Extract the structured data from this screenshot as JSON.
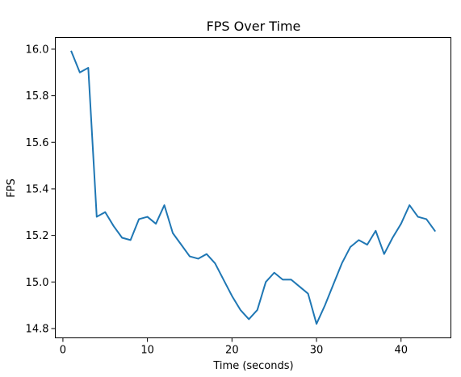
{
  "chart_data": {
    "type": "line",
    "title": "FPS Over Time",
    "xlabel": "Time (seconds)",
    "ylabel": "FPS",
    "xlim": [
      -0.9,
      45.9
    ],
    "ylim": [
      14.76,
      16.05
    ],
    "xticks": [
      0,
      10,
      20,
      30,
      40
    ],
    "xtick_labels": [
      "0",
      "10",
      "20",
      "30",
      "40"
    ],
    "yticks": [
      14.8,
      15.0,
      15.2,
      15.4,
      15.6,
      15.8,
      16.0
    ],
    "ytick_labels": [
      "14.8",
      "15.0",
      "15.2",
      "15.4",
      "15.6",
      "15.8",
      "16.0"
    ],
    "grid": false,
    "series": [
      {
        "color": "#1f77b4",
        "x": [
          1,
          2,
          3,
          4,
          5,
          6,
          7,
          8,
          9,
          10,
          11,
          12,
          13,
          14,
          15,
          16,
          17,
          18,
          19,
          20,
          21,
          22,
          23,
          24,
          25,
          26,
          27,
          28,
          29,
          30,
          31,
          32,
          33,
          34,
          35,
          36,
          37,
          38,
          39,
          40,
          41,
          42,
          43,
          44
        ],
        "y": [
          15.99,
          15.9,
          15.92,
          15.28,
          15.3,
          15.24,
          15.19,
          15.18,
          15.27,
          15.28,
          15.25,
          15.33,
          15.21,
          15.16,
          15.11,
          15.1,
          15.12,
          15.08,
          15.01,
          14.94,
          14.88,
          14.84,
          14.88,
          15.0,
          15.04,
          15.01,
          15.01,
          14.98,
          14.95,
          14.82,
          14.9,
          14.99,
          15.08,
          15.15,
          15.18,
          15.16,
          15.22,
          15.12,
          15.19,
          15.25,
          15.33,
          15.28,
          15.27,
          15.22
        ]
      }
    ]
  }
}
